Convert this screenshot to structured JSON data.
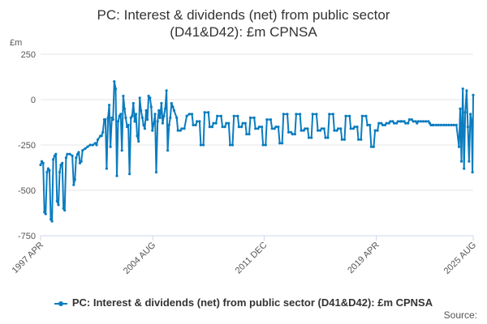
{
  "chart_data": {
    "type": "line",
    "title_lines": [
      "PC: Interest & dividends (net) from public sector",
      "(D41&D42): £m CPNSA"
    ],
    "unit_label": "£m",
    "ylim": [
      -750,
      250
    ],
    "yticks": [
      250,
      0,
      -250,
      -500,
      -750
    ],
    "xlim": [
      1997.25,
      2025.6
    ],
    "xticks": [
      {
        "label": "1997 APR",
        "value": 1997.25
      },
      {
        "label": "2004 AUG",
        "value": 2004.6
      },
      {
        "label": "2011 DEC",
        "value": 2011.9
      },
      {
        "label": "2019 APR",
        "value": 2019.25
      },
      {
        "label": "2025 AUG",
        "value": 2025.6
      }
    ],
    "series": [
      {
        "name": "PC: Interest & dividends (net) from public sector (D41&D42): £m CPNSA",
        "color": "#0b7cbf",
        "points": [
          [
            1997.25,
            -360
          ],
          [
            1997.33,
            -340
          ],
          [
            1997.42,
            -350
          ],
          [
            1997.5,
            -620
          ],
          [
            1997.58,
            -630
          ],
          [
            1997.67,
            -400
          ],
          [
            1997.75,
            -380
          ],
          [
            1997.83,
            -390
          ],
          [
            1997.92,
            -660
          ],
          [
            1998.0,
            -670
          ],
          [
            1998.08,
            -330
          ],
          [
            1998.17,
            -310
          ],
          [
            1998.25,
            -300
          ],
          [
            1998.33,
            -560
          ],
          [
            1998.42,
            -580
          ],
          [
            1998.5,
            -400
          ],
          [
            1998.58,
            -360
          ],
          [
            1998.67,
            -350
          ],
          [
            1998.75,
            -600
          ],
          [
            1998.83,
            -610
          ],
          [
            1998.92,
            -320
          ],
          [
            1999.0,
            -300
          ],
          [
            1999.17,
            -300
          ],
          [
            1999.33,
            -310
          ],
          [
            1999.42,
            -470
          ],
          [
            1999.5,
            -440
          ],
          [
            1999.58,
            -320
          ],
          [
            1999.67,
            -300
          ],
          [
            1999.75,
            -290
          ],
          [
            1999.83,
            -350
          ],
          [
            1999.92,
            -340
          ],
          [
            2000.0,
            -280
          ],
          [
            2000.17,
            -270
          ],
          [
            2000.33,
            -260
          ],
          [
            2000.5,
            -250
          ],
          [
            2000.67,
            -250
          ],
          [
            2000.83,
            -240
          ],
          [
            2000.92,
            -250
          ],
          [
            2001.0,
            -220
          ],
          [
            2001.17,
            -200
          ],
          [
            2001.25,
            -200
          ],
          [
            2001.33,
            -180
          ],
          [
            2001.42,
            -110
          ],
          [
            2001.5,
            -110
          ],
          [
            2001.58,
            -380
          ],
          [
            2001.67,
            -100
          ],
          [
            2001.75,
            -30
          ],
          [
            2001.83,
            -260
          ],
          [
            2001.92,
            -100
          ],
          [
            2002.0,
            -110
          ],
          [
            2002.08,
            100
          ],
          [
            2002.17,
            60
          ],
          [
            2002.25,
            -420
          ],
          [
            2002.33,
            -120
          ],
          [
            2002.42,
            -90
          ],
          [
            2002.5,
            -80
          ],
          [
            2002.58,
            -280
          ],
          [
            2002.67,
            20
          ],
          [
            2002.75,
            -50
          ],
          [
            2002.83,
            -100
          ],
          [
            2002.92,
            -150
          ],
          [
            2003.0,
            -140
          ],
          [
            2003.08,
            -410
          ],
          [
            2003.17,
            -100
          ],
          [
            2003.25,
            -90
          ],
          [
            2003.33,
            -20
          ],
          [
            2003.42,
            -120
          ],
          [
            2003.5,
            -80
          ],
          [
            2003.58,
            -200
          ],
          [
            2003.67,
            -230
          ],
          [
            2003.75,
            10
          ],
          [
            2003.83,
            -60
          ],
          [
            2003.92,
            -100
          ],
          [
            2004.0,
            -140
          ],
          [
            2004.08,
            -160
          ],
          [
            2004.17,
            -60
          ],
          [
            2004.25,
            -110
          ],
          [
            2004.33,
            20
          ],
          [
            2004.42,
            10
          ],
          [
            2004.5,
            -40
          ],
          [
            2004.58,
            -170
          ],
          [
            2004.67,
            -130
          ],
          [
            2004.75,
            -80
          ],
          [
            2004.83,
            -400
          ],
          [
            2004.92,
            -120
          ],
          [
            2005.0,
            -60
          ],
          [
            2005.08,
            -100
          ],
          [
            2005.17,
            -20
          ],
          [
            2005.25,
            -130
          ],
          [
            2005.33,
            -90
          ],
          [
            2005.42,
            -50
          ],
          [
            2005.5,
            50
          ],
          [
            2005.58,
            -280
          ],
          [
            2005.67,
            -140
          ],
          [
            2005.75,
            -100
          ],
          [
            2005.83,
            -20
          ],
          [
            2005.92,
            -40
          ],
          [
            2006.0,
            -60
          ],
          [
            2006.17,
            -100
          ],
          [
            2006.25,
            -170
          ],
          [
            2006.42,
            -170
          ],
          [
            2006.5,
            -160
          ],
          [
            2006.67,
            -160
          ],
          [
            2006.83,
            -90
          ],
          [
            2007.0,
            -80
          ],
          [
            2007.17,
            -80
          ],
          [
            2007.25,
            -140
          ],
          [
            2007.42,
            -140
          ],
          [
            2007.5,
            -120
          ],
          [
            2007.67,
            -120
          ],
          [
            2007.75,
            -250
          ],
          [
            2007.92,
            -250
          ],
          [
            2008.0,
            -70
          ],
          [
            2008.25,
            -70
          ],
          [
            2008.33,
            -150
          ],
          [
            2008.5,
            -150
          ],
          [
            2008.58,
            -130
          ],
          [
            2008.75,
            -130
          ],
          [
            2008.83,
            -90
          ],
          [
            2009.08,
            -90
          ],
          [
            2009.17,
            -150
          ],
          [
            2009.33,
            -150
          ],
          [
            2009.42,
            -130
          ],
          [
            2009.58,
            -130
          ],
          [
            2009.67,
            -250
          ],
          [
            2009.83,
            -250
          ],
          [
            2009.92,
            -90
          ],
          [
            2010.17,
            -90
          ],
          [
            2010.25,
            -150
          ],
          [
            2010.42,
            -150
          ],
          [
            2010.5,
            -130
          ],
          [
            2010.67,
            -130
          ],
          [
            2010.75,
            -190
          ],
          [
            2010.92,
            -190
          ],
          [
            2011.0,
            -100
          ],
          [
            2011.25,
            -100
          ],
          [
            2011.33,
            -160
          ],
          [
            2011.5,
            -160
          ],
          [
            2011.58,
            -150
          ],
          [
            2011.75,
            -150
          ],
          [
            2011.83,
            -250
          ],
          [
            2012.0,
            -250
          ],
          [
            2012.08,
            -110
          ],
          [
            2012.33,
            -110
          ],
          [
            2012.42,
            -160
          ],
          [
            2012.58,
            -160
          ],
          [
            2012.67,
            -150
          ],
          [
            2012.83,
            -150
          ],
          [
            2012.92,
            -240
          ],
          [
            2013.08,
            -240
          ],
          [
            2013.17,
            -80
          ],
          [
            2013.42,
            -80
          ],
          [
            2013.5,
            -180
          ],
          [
            2013.67,
            -180
          ],
          [
            2013.75,
            -190
          ],
          [
            2013.92,
            -190
          ],
          [
            2014.0,
            -80
          ],
          [
            2014.25,
            -80
          ],
          [
            2014.33,
            -170
          ],
          [
            2014.5,
            -170
          ],
          [
            2014.58,
            -160
          ],
          [
            2014.75,
            -160
          ],
          [
            2014.83,
            -210
          ],
          [
            2015.0,
            -210
          ],
          [
            2015.08,
            -80
          ],
          [
            2015.33,
            -80
          ],
          [
            2015.42,
            -170
          ],
          [
            2015.58,
            -170
          ],
          [
            2015.67,
            -160
          ],
          [
            2015.83,
            -160
          ],
          [
            2015.92,
            -210
          ],
          [
            2016.08,
            -210
          ],
          [
            2016.17,
            -80
          ],
          [
            2016.42,
            -80
          ],
          [
            2016.5,
            -170
          ],
          [
            2016.67,
            -170
          ],
          [
            2016.75,
            -160
          ],
          [
            2016.92,
            -160
          ],
          [
            2017.0,
            -220
          ],
          [
            2017.17,
            -220
          ],
          [
            2017.25,
            -90
          ],
          [
            2017.5,
            -90
          ],
          [
            2017.58,
            -160
          ],
          [
            2017.75,
            -160
          ],
          [
            2017.83,
            -150
          ],
          [
            2018.0,
            -150
          ],
          [
            2018.08,
            -220
          ],
          [
            2018.25,
            -220
          ],
          [
            2018.33,
            -90
          ],
          [
            2018.58,
            -90
          ],
          [
            2018.67,
            -140
          ],
          [
            2018.83,
            -140
          ],
          [
            2018.92,
            -260
          ],
          [
            2019.08,
            -260
          ],
          [
            2019.17,
            -170
          ],
          [
            2019.33,
            -170
          ],
          [
            2019.42,
            -130
          ],
          [
            2019.58,
            -130
          ],
          [
            2019.67,
            -140
          ],
          [
            2019.83,
            -140
          ],
          [
            2019.92,
            -130
          ],
          [
            2020.08,
            -130
          ],
          [
            2020.17,
            -120
          ],
          [
            2020.33,
            -120
          ],
          [
            2020.42,
            -130
          ],
          [
            2020.58,
            -130
          ],
          [
            2020.67,
            -120
          ],
          [
            2020.83,
            -120
          ],
          [
            2020.92,
            -120
          ],
          [
            2021.08,
            -120
          ],
          [
            2021.17,
            -130
          ],
          [
            2021.33,
            -130
          ],
          [
            2021.42,
            -110
          ],
          [
            2021.58,
            -110
          ],
          [
            2021.67,
            -120
          ],
          [
            2021.83,
            -120
          ],
          [
            2021.92,
            -130
          ],
          [
            2022.0,
            -120
          ],
          [
            2022.17,
            -120
          ],
          [
            2022.33,
            -120
          ],
          [
            2022.5,
            -120
          ],
          [
            2022.67,
            -120
          ],
          [
            2022.75,
            -130
          ],
          [
            2022.83,
            -140
          ],
          [
            2022.92,
            -140
          ],
          [
            2023.0,
            -140
          ],
          [
            2023.17,
            -140
          ],
          [
            2023.33,
            -140
          ],
          [
            2023.5,
            -140
          ],
          [
            2023.67,
            -140
          ],
          [
            2023.83,
            -140
          ],
          [
            2024.0,
            -140
          ],
          [
            2024.17,
            -140
          ],
          [
            2024.33,
            -140
          ],
          [
            2024.5,
            -140
          ],
          [
            2024.67,
            -260
          ],
          [
            2024.75,
            -50
          ],
          [
            2024.83,
            -340
          ],
          [
            2024.92,
            60
          ],
          [
            2025.0,
            -380
          ],
          [
            2025.08,
            -70
          ],
          [
            2025.17,
            50
          ],
          [
            2025.25,
            -150
          ],
          [
            2025.33,
            -340
          ],
          [
            2025.42,
            -80
          ],
          [
            2025.5,
            -120
          ],
          [
            2025.55,
            -400
          ],
          [
            2025.6,
            25
          ]
        ]
      }
    ]
  },
  "legend": {
    "label": "PC: Interest & dividends (net) from public sector (D41&D42): £m CPNSA"
  },
  "source": {
    "label": "Source:"
  }
}
